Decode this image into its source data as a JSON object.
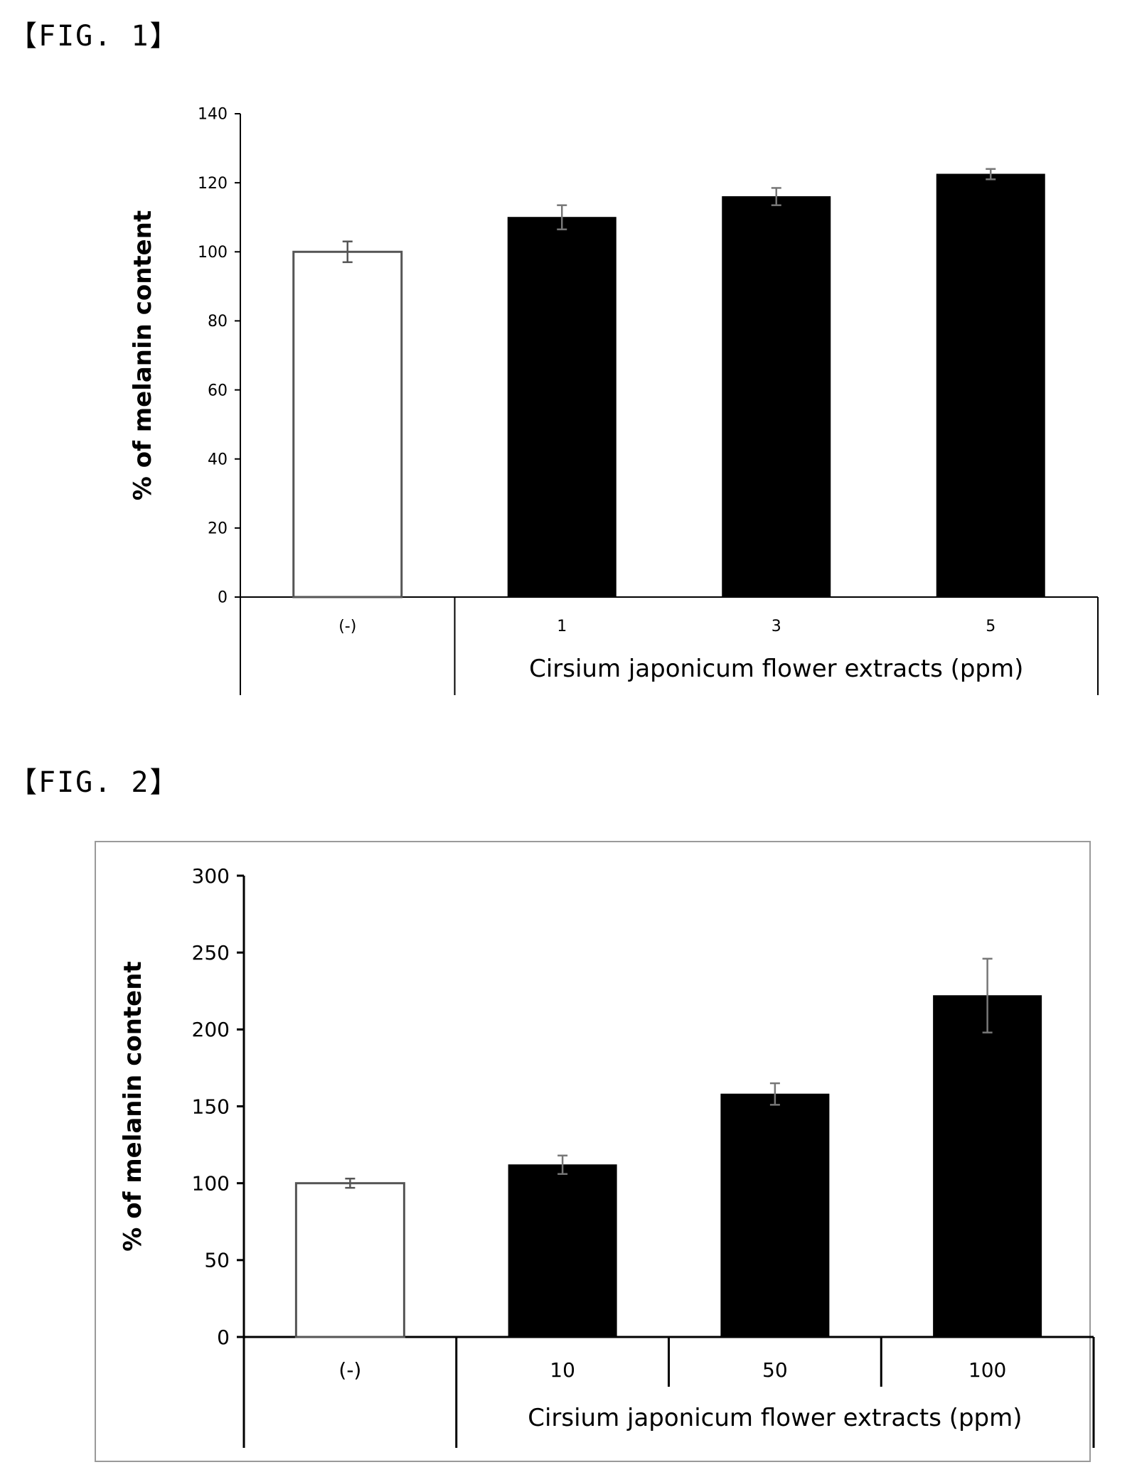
{
  "figures": {
    "fig1_label": "【FIG. 1】",
    "fig2_label": "【FIG. 2】"
  },
  "chart_data": [
    {
      "type": "bar",
      "categories": [
        "(-)",
        "1",
        "3",
        "5"
      ],
      "values": [
        100,
        110,
        116,
        122.5
      ],
      "errors": [
        3,
        3.5,
        2.5,
        1.5
      ],
      "colors": [
        "#ffffff",
        "#000000",
        "#000000",
        "#000000"
      ],
      "ylim": [
        0,
        140
      ],
      "yticks": [
        0,
        20,
        40,
        60,
        80,
        100,
        120,
        140
      ],
      "ylabel": "% of melanin content",
      "xlabel": "Cirsium japonicum flower extracts (ppm)",
      "grid": false
    },
    {
      "type": "bar",
      "categories": [
        "(-)",
        "10",
        "50",
        "100"
      ],
      "values": [
        100,
        112,
        158,
        222
      ],
      "errors": [
        3,
        6,
        7,
        24
      ],
      "colors": [
        "#ffffff",
        "#000000",
        "#000000",
        "#000000"
      ],
      "ylim": [
        0,
        300
      ],
      "yticks": [
        0,
        50,
        100,
        150,
        200,
        250,
        300
      ],
      "ylabel": "% of melanin content",
      "xlabel": "Cirsium japonicum flower extracts (ppm)",
      "grid": false
    }
  ]
}
